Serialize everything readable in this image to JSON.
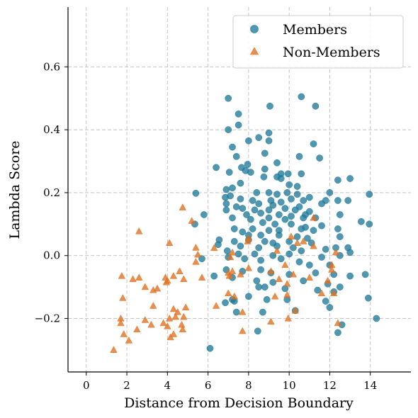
{
  "chart_data": {
    "type": "scatter",
    "title": "",
    "xlabel": "Distance from Decision Boundary",
    "ylabel": "Lambda Score",
    "xlim": [
      -0.9,
      16
    ],
    "ylim": [
      -0.37,
      0.79
    ],
    "xticks": [
      0,
      2,
      4,
      6,
      8,
      10,
      12,
      14
    ],
    "xtick_labels": [
      "0",
      "2",
      "4",
      "6",
      "8",
      "10",
      "12",
      "14"
    ],
    "yticks": [
      -0.2,
      0.0,
      0.2,
      0.4,
      0.6
    ],
    "ytick_labels": [
      "−0.2",
      "0.0",
      "0.2",
      "0.4",
      "0.6"
    ],
    "grid": true,
    "legend_position": "top-right",
    "series": [
      {
        "name": "Members",
        "marker": "circle",
        "color": "#1f7a99",
        "points": [
          [
            7.0,
            0.5
          ],
          [
            10.6,
            0.505
          ],
          [
            11.3,
            0.475
          ],
          [
            9.05,
            0.475
          ],
          [
            7.5,
            0.45
          ],
          [
            7.5,
            0.415
          ],
          [
            7.0,
            0.4
          ],
          [
            9.0,
            0.39
          ],
          [
            8.5,
            0.375
          ],
          [
            8.0,
            0.365
          ],
          [
            9.0,
            0.365
          ],
          [
            7.2,
            0.345
          ],
          [
            8.8,
            0.325
          ],
          [
            7.4,
            0.315
          ],
          [
            10.5,
            0.315
          ],
          [
            11.5,
            0.31
          ],
          [
            11.2,
            0.355
          ],
          [
            9.4,
            0.295
          ],
          [
            7.95,
            0.29
          ],
          [
            6.4,
            0.28
          ],
          [
            7.65,
            0.28
          ],
          [
            8.8,
            0.275
          ],
          [
            7.85,
            0.27
          ],
          [
            7.05,
            0.265
          ],
          [
            8.1,
            0.265
          ],
          [
            9.6,
            0.26
          ],
          [
            9.4,
            0.25
          ],
          [
            10.6,
            0.26
          ],
          [
            9.95,
            0.26
          ],
          [
            8.75,
            0.25
          ],
          [
            9.6,
            0.245
          ],
          [
            12.4,
            0.24
          ],
          [
            13.0,
            0.245
          ],
          [
            7.6,
            0.23
          ],
          [
            10.0,
            0.225
          ],
          [
            10.4,
            0.22
          ],
          [
            7.2,
            0.215
          ],
          [
            6.9,
            0.21
          ],
          [
            8.4,
            0.2
          ],
          [
            9.0,
            0.2
          ],
          [
            5.4,
            0.198
          ],
          [
            9.4,
            0.195
          ],
          [
            9.9,
            0.2
          ],
          [
            10.4,
            0.195
          ],
          [
            12.0,
            0.2
          ],
          [
            13.95,
            0.195
          ],
          [
            11.0,
            0.185
          ],
          [
            7.1,
            0.19
          ],
          [
            6.85,
            0.185
          ],
          [
            7.6,
            0.18
          ],
          [
            8.2,
            0.175
          ],
          [
            9.1,
            0.175
          ],
          [
            10.1,
            0.18
          ],
          [
            10.7,
            0.175
          ],
          [
            11.8,
            0.175
          ],
          [
            12.4,
            0.175
          ],
          [
            12.9,
            0.175
          ],
          [
            9.6,
            0.17
          ],
          [
            6.9,
            0.165
          ],
          [
            7.4,
            0.155
          ],
          [
            8.5,
            0.165
          ],
          [
            9.2,
            0.16
          ],
          [
            10.5,
            0.155
          ],
          [
            11.6,
            0.165
          ],
          [
            6.9,
            0.145
          ],
          [
            7.7,
            0.15
          ],
          [
            8.3,
            0.145
          ],
          [
            9.0,
            0.145
          ],
          [
            9.8,
            0.15
          ],
          [
            10.3,
            0.145
          ],
          [
            11.0,
            0.14
          ],
          [
            12.5,
            0.13
          ],
          [
            7.9,
            0.13
          ],
          [
            8.6,
            0.135
          ],
          [
            9.5,
            0.13
          ],
          [
            10.1,
            0.125
          ],
          [
            10.8,
            0.13
          ],
          [
            5.8,
            0.13
          ],
          [
            7.2,
            0.12
          ],
          [
            8.1,
            0.115
          ],
          [
            9.0,
            0.12
          ],
          [
            9.8,
            0.115
          ],
          [
            10.7,
            0.12
          ],
          [
            11.3,
            0.12
          ],
          [
            13.55,
            0.108
          ],
          [
            13.95,
            0.1
          ],
          [
            8.7,
            0.105
          ],
          [
            9.3,
            0.1
          ],
          [
            10.1,
            0.1
          ],
          [
            10.8,
            0.09
          ],
          [
            11.6,
            0.095
          ],
          [
            12.4,
            0.085
          ],
          [
            5.35,
            0.1
          ],
          [
            7.3,
            0.085
          ],
          [
            7.7,
            0.075
          ],
          [
            8.2,
            0.085
          ],
          [
            9.0,
            0.08
          ],
          [
            9.5,
            0.08
          ],
          [
            10.6,
            0.085
          ],
          [
            11.2,
            0.08
          ],
          [
            8.0,
            0.065
          ],
          [
            8.6,
            0.065
          ],
          [
            9.5,
            0.065
          ],
          [
            10.4,
            0.06
          ],
          [
            10.9,
            0.055
          ],
          [
            12.5,
            0.06
          ],
          [
            6.55,
            0.05
          ],
          [
            7.3,
            0.045
          ],
          [
            8.0,
            0.05
          ],
          [
            8.8,
            0.045
          ],
          [
            9.2,
            0.04
          ],
          [
            10.0,
            0.045
          ],
          [
            11.1,
            0.04
          ],
          [
            6.5,
            0.035
          ],
          [
            7.6,
            0.03
          ],
          [
            8.5,
            0.025
          ],
          [
            9.4,
            0.03
          ],
          [
            10.2,
            0.025
          ],
          [
            10.6,
            0.015
          ],
          [
            11.8,
            0.02
          ],
          [
            12.3,
            0.025
          ],
          [
            12.9,
            0.025
          ],
          [
            6.95,
            0.015
          ],
          [
            7.5,
            0.005
          ],
          [
            8.3,
            0.005
          ],
          [
            9.2,
            0.0
          ],
          [
            10.0,
            0.005
          ],
          [
            11.6,
            -0.005
          ],
          [
            12.5,
            0.0
          ],
          [
            13.0,
            0.01
          ],
          [
            5.7,
            -0.01
          ],
          [
            7.0,
            -0.005
          ],
          [
            7.8,
            -0.01
          ],
          [
            8.6,
            -0.015
          ],
          [
            9.6,
            -0.01
          ],
          [
            10.5,
            -0.02
          ],
          [
            11.0,
            -0.03
          ],
          [
            12.0,
            -0.03
          ],
          [
            6.9,
            -0.045
          ],
          [
            7.7,
            -0.05
          ],
          [
            8.6,
            -0.045
          ],
          [
            9.1,
            -0.055
          ],
          [
            10.0,
            -0.06
          ],
          [
            11.3,
            -0.055
          ],
          [
            12.2,
            -0.06
          ],
          [
            13.0,
            -0.065
          ],
          [
            13.75,
            -0.06
          ],
          [
            6.3,
            -0.065
          ],
          [
            7.2,
            -0.07
          ],
          [
            8.4,
            -0.08
          ],
          [
            9.2,
            -0.085
          ],
          [
            10.7,
            -0.08
          ],
          [
            11.9,
            -0.09
          ],
          [
            12.5,
            -0.1
          ],
          [
            8.5,
            -0.1
          ],
          [
            8.8,
            -0.1
          ],
          [
            9.8,
            -0.105
          ],
          [
            11.4,
            -0.11
          ],
          [
            12.2,
            -0.115
          ],
          [
            8.0,
            -0.13
          ],
          [
            7.2,
            -0.14
          ],
          [
            8.9,
            -0.14
          ],
          [
            9.9,
            -0.14
          ],
          [
            11.8,
            -0.145
          ],
          [
            6.85,
            -0.15
          ],
          [
            7.3,
            -0.145
          ],
          [
            12.0,
            -0.165
          ],
          [
            10.3,
            -0.175
          ],
          [
            7.4,
            -0.18
          ],
          [
            8.7,
            -0.18
          ],
          [
            12.6,
            -0.22
          ],
          [
            13.9,
            -0.135
          ],
          [
            14.3,
            -0.2
          ],
          [
            12.4,
            -0.245
          ],
          [
            8.45,
            -0.24
          ],
          [
            6.1,
            -0.295
          ]
        ]
      },
      {
        "name": "Non-Members",
        "marker": "triangle",
        "color": "#e07020",
        "points": [
          [
            2.6,
            0.077
          ],
          [
            4.75,
            0.153
          ],
          [
            5.2,
            0.11
          ],
          [
            4.1,
            0.04
          ],
          [
            5.4,
            0.025
          ],
          [
            6.3,
            0.024
          ],
          [
            5.5,
            0.003
          ],
          [
            5.4,
            -0.02
          ],
          [
            4.6,
            -0.05
          ],
          [
            4.3,
            -0.065
          ],
          [
            4.8,
            -0.075
          ],
          [
            5.7,
            -0.07
          ],
          [
            3.9,
            -0.07
          ],
          [
            4.0,
            -0.08
          ],
          [
            3.95,
            -0.085
          ],
          [
            1.75,
            -0.065
          ],
          [
            2.3,
            -0.075
          ],
          [
            2.6,
            -0.07
          ],
          [
            2.9,
            -0.1
          ],
          [
            3.3,
            -0.11
          ],
          [
            3.5,
            -0.105
          ],
          [
            1.8,
            -0.135
          ],
          [
            3.3,
            -0.16
          ],
          [
            4.3,
            -0.17
          ],
          [
            4.5,
            -0.18
          ],
          [
            4.9,
            -0.165
          ],
          [
            4.1,
            -0.2
          ],
          [
            4.8,
            -0.195
          ],
          [
            4.4,
            -0.195
          ],
          [
            1.7,
            -0.2
          ],
          [
            1.7,
            -0.215
          ],
          [
            2.9,
            -0.205
          ],
          [
            3.2,
            -0.22
          ],
          [
            3.8,
            -0.215
          ],
          [
            4.0,
            -0.225
          ],
          [
            4.7,
            -0.22
          ],
          [
            4.3,
            -0.25
          ],
          [
            4.75,
            -0.235
          ],
          [
            2.5,
            -0.235
          ],
          [
            1.85,
            -0.25
          ],
          [
            4.15,
            -0.26
          ],
          [
            2.1,
            -0.27
          ],
          [
            1.35,
            -0.3
          ],
          [
            6.4,
            -0.16
          ],
          [
            7.0,
            -0.12
          ],
          [
            7.3,
            -0.13
          ],
          [
            7.2,
            -0.05
          ],
          [
            7.0,
            -0.055
          ],
          [
            7.05,
            -0.065
          ],
          [
            7.6,
            -0.06
          ],
          [
            7.7,
            -0.18
          ],
          [
            7.7,
            -0.24
          ],
          [
            8.0,
            0.055
          ],
          [
            7.95,
            0.045
          ],
          [
            7.2,
            0.01
          ],
          [
            7.1,
            -0.005
          ],
          [
            8.0,
            -0.04
          ],
          [
            9.1,
            -0.05
          ],
          [
            9.5,
            -0.075
          ],
          [
            9.9,
            -0.09
          ],
          [
            9.3,
            -0.13
          ],
          [
            9.9,
            -0.125
          ],
          [
            10.3,
            -0.175
          ],
          [
            9.95,
            -0.2
          ],
          [
            9.1,
            -0.21
          ],
          [
            9.4,
            0.015
          ],
          [
            9.8,
            -0.03
          ],
          [
            10.2,
            -0.06
          ],
          [
            10.4,
            0.04
          ],
          [
            10.7,
            0.045
          ],
          [
            11.0,
            -0.07
          ],
          [
            11.2,
            0.03
          ],
          [
            11.2,
            0.12
          ],
          [
            11.6,
            -0.12
          ],
          [
            11.9,
            -0.08
          ],
          [
            12.1,
            -0.045
          ],
          [
            12.3,
            0.01
          ],
          [
            12.2,
            -0.12
          ],
          [
            12.4,
            -0.215
          ],
          [
            12.1,
            -0.03
          ],
          [
            10.1,
            0.06
          ]
        ]
      }
    ]
  }
}
